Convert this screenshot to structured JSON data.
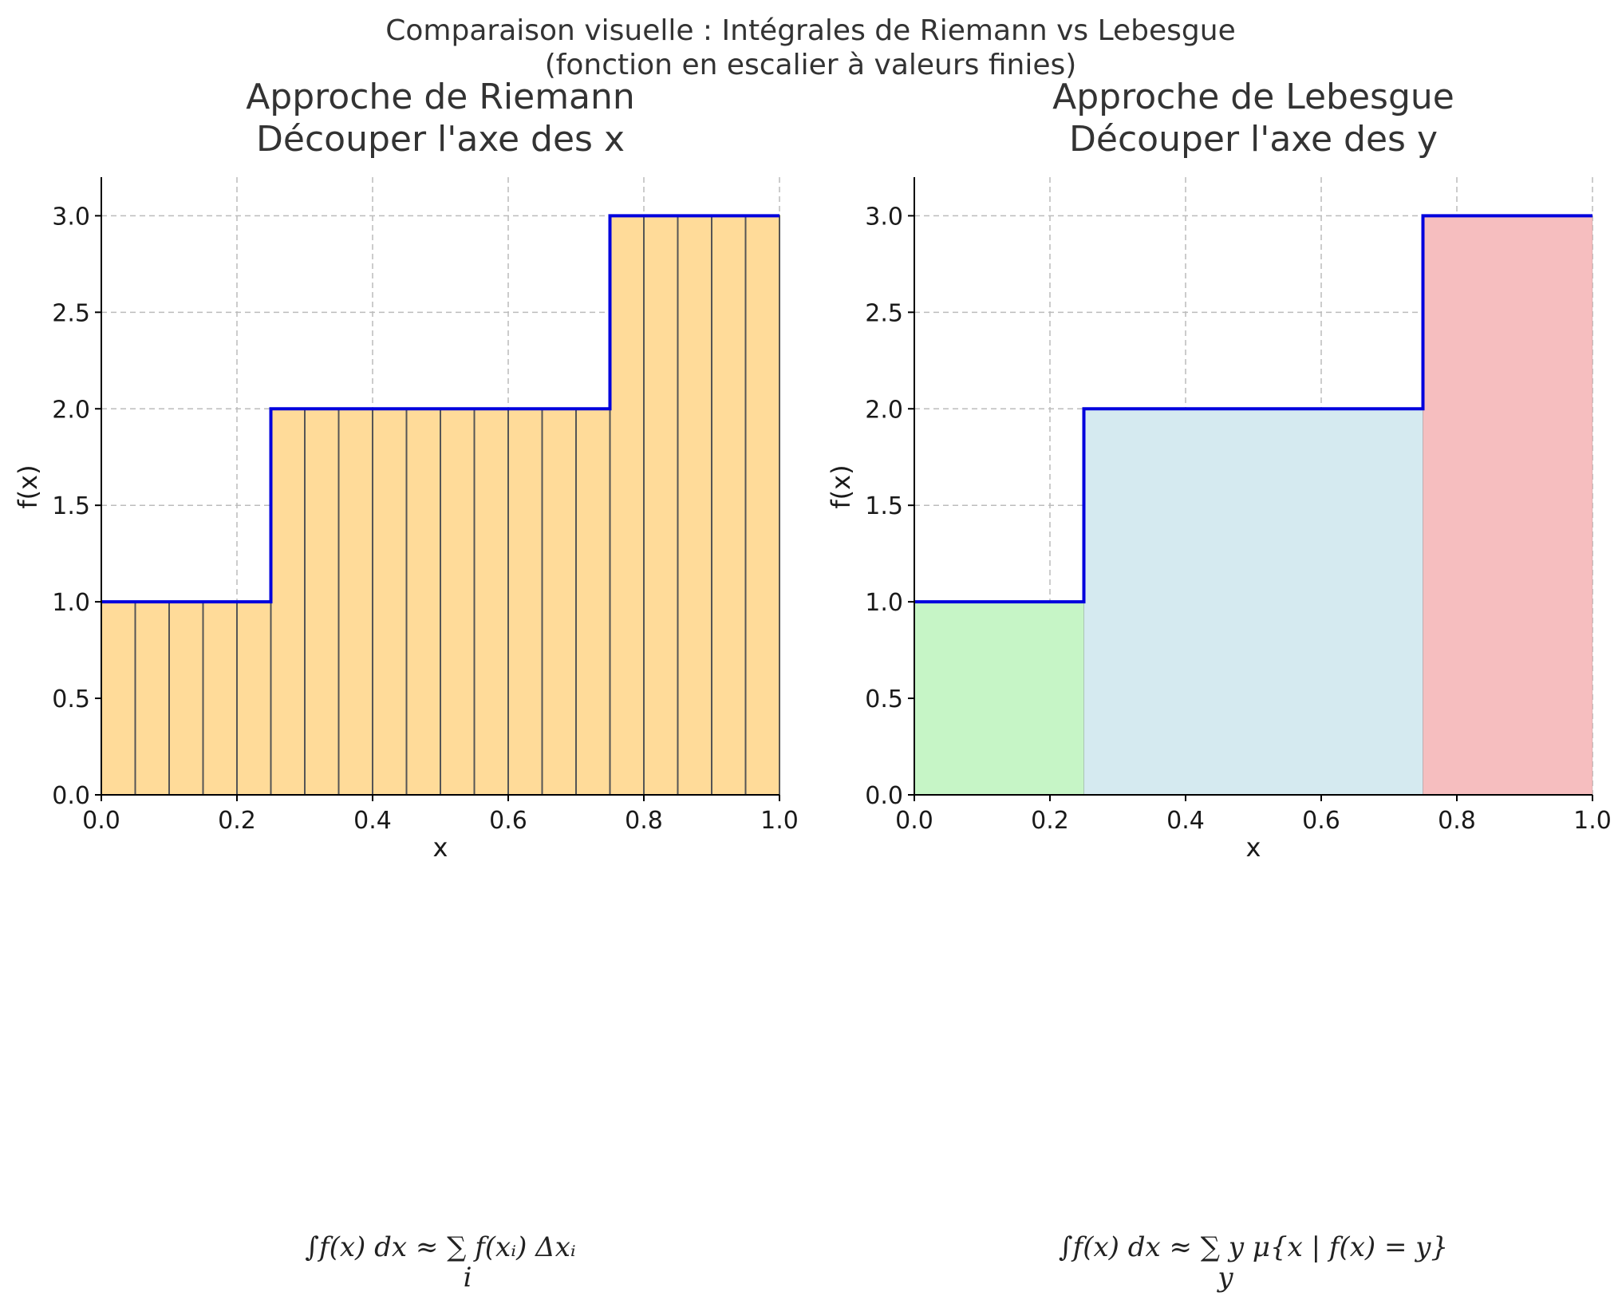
{
  "figure": {
    "suptitle_line1": "Comparaison visuelle : Intégrales de Riemann vs Lebesgue",
    "suptitle_line2": "(fonction en escalier à valeurs finies)"
  },
  "chart_data": [
    {
      "type": "area",
      "id": "riemann",
      "title_line1": "Approche de Riemann",
      "title_line2": "Découper l'axe des x",
      "xlabel": "x",
      "ylabel": "f(x)",
      "xlim": [
        0.0,
        1.0
      ],
      "ylim": [
        0.0,
        3.2
      ],
      "xticks": [
        "0.0",
        "0.2",
        "0.4",
        "0.6",
        "0.8",
        "1.0"
      ],
      "yticks": [
        "0.0",
        "0.5",
        "1.0",
        "1.5",
        "2.0",
        "2.5",
        "3.0"
      ],
      "grid": true,
      "step_function": {
        "x": [
          0.0,
          0.25,
          0.25,
          0.75,
          0.75,
          1.0
        ],
        "y": [
          1.0,
          1.0,
          2.0,
          2.0,
          3.0,
          3.0
        ],
        "color": "#0000dd"
      },
      "riemann_bars": {
        "dx": 0.05,
        "count": 20,
        "fill": "#ffdb99",
        "edge": "#555555"
      },
      "formula": "∫f(x) dx ≈ ∑ f(xᵢ) Δxᵢ",
      "formula_sub": "i"
    },
    {
      "type": "area",
      "id": "lebesgue",
      "title_line1": "Approche de Lebesgue",
      "title_line2": "Découper l'axe des y",
      "xlabel": "x",
      "ylabel": "f(x)",
      "xlim": [
        0.0,
        1.0
      ],
      "ylim": [
        0.0,
        3.2
      ],
      "xticks": [
        "0.0",
        "0.2",
        "0.4",
        "0.6",
        "0.8",
        "1.0"
      ],
      "yticks": [
        "0.0",
        "0.5",
        "1.0",
        "1.5",
        "2.0",
        "2.5",
        "3.0"
      ],
      "grid": true,
      "step_function": {
        "x": [
          0.0,
          0.25,
          0.25,
          0.75,
          0.75,
          1.0
        ],
        "y": [
          1.0,
          1.0,
          2.0,
          2.0,
          3.0,
          3.0
        ],
        "color": "#0000dd"
      },
      "level_regions": [
        {
          "x0": 0.0,
          "x1": 0.25,
          "y": 1.0,
          "fill": "#c6f5c6"
        },
        {
          "x0": 0.25,
          "x1": 0.75,
          "y": 2.0,
          "fill": "#d5eaf0"
        },
        {
          "x0": 0.75,
          "x1": 1.0,
          "y": 3.0,
          "fill": "#f6bebf"
        }
      ],
      "formula": "∫f(x) dx ≈ ∑ y μ{x | f(x) = y}",
      "formula_sub": "y"
    }
  ]
}
